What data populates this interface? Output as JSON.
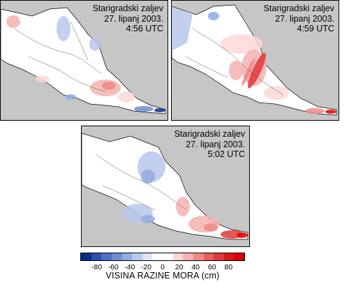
{
  "panels": [
    {
      "location": "Starigradski zaljev",
      "date": "27. lipanj 2003.",
      "time": "4:56 UTC"
    },
    {
      "location": "Starigradski zaljev",
      "date": "27. lipanj 2003.",
      "time": "4:59 UTC"
    },
    {
      "location": "Starigradski zaljev",
      "date": "27. lipanj 2003.",
      "time": "5:02 UTC"
    }
  ],
  "legend": {
    "title": "VISINA RAZINE MORA (cm)",
    "ticks": [
      "-80",
      "-60",
      "-40",
      "-20",
      "0",
      "20",
      "40",
      "60",
      "80"
    ],
    "colors": [
      "#0a2f8a",
      "#2a4fb0",
      "#4c6fc4",
      "#6f8dd2",
      "#93abdf",
      "#b7c8ea",
      "#dce4f4",
      "#ffffff",
      "#ffffff",
      "#fbd8d8",
      "#f6b2b2",
      "#f08888",
      "#ea5e5e",
      "#e33838",
      "#d91818",
      "#e00000"
    ]
  },
  "colors": {
    "land": "#c6c6c6",
    "sea": "#ffffff"
  }
}
